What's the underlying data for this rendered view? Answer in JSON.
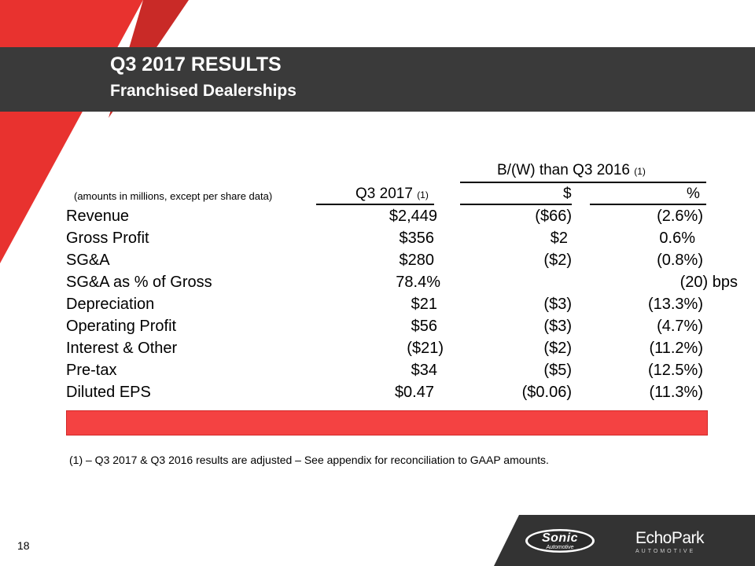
{
  "slide": {
    "title": "Q3 2017 RESULTS",
    "subtitle": "Franchised Dealerships",
    "page_number": "18"
  },
  "table": {
    "note": "(amounts in millions, except per share data)",
    "group_header": "B/(W) than Q3 2016",
    "group_header_ref": "(1)",
    "col_q3_label": "Q3 2017",
    "col_q3_ref": "(1)",
    "col_dollar_label": "$",
    "col_pct_label": "%",
    "rows": [
      {
        "label": "Revenue",
        "q3": "$2,449",
        "dollar": "($66)",
        "pct": "(2.6%)"
      },
      {
        "label": "Gross Profit",
        "q3": "$356",
        "dollar": "$2",
        "pct": "0.6%"
      },
      {
        "label": "SG&A",
        "q3": "$280",
        "dollar": "($2)",
        "pct": "(0.8%)"
      },
      {
        "label": "SG&A as % of Gross",
        "q3": "78.4%",
        "dollar": "",
        "pct": "(20) bps"
      },
      {
        "label": "Depreciation",
        "q3": "$21",
        "dollar": "($3)",
        "pct": "(13.3%)"
      },
      {
        "label": "Operating Profit",
        "q3": "$56",
        "dollar": "($3)",
        "pct": "(4.7%)"
      },
      {
        "label": "Interest & Other",
        "q3": "($21)",
        "dollar": "($2)",
        "pct": "(11.2%)"
      },
      {
        "label": "Pre-tax",
        "q3": "$34",
        "dollar": "($5)",
        "pct": "(12.5%)"
      },
      {
        "label": "Diluted EPS",
        "q3": "$0.47",
        "dollar": "($0.06)",
        "pct": "(11.3%)"
      }
    ]
  },
  "footnote": "(1) – Q3 2017 & Q3 2016 results are adjusted – See appendix for reconciliation to GAAP amounts.",
  "logos": {
    "sonic": "Sonic",
    "sonic_sub": "Automotive",
    "echopark": "EchoPark",
    "echopark_sub": "AUTOMOTIVE"
  },
  "colors": {
    "title_band": "#3a3a3a",
    "accent_red": "#e8322f",
    "bar_red": "#f44242"
  }
}
